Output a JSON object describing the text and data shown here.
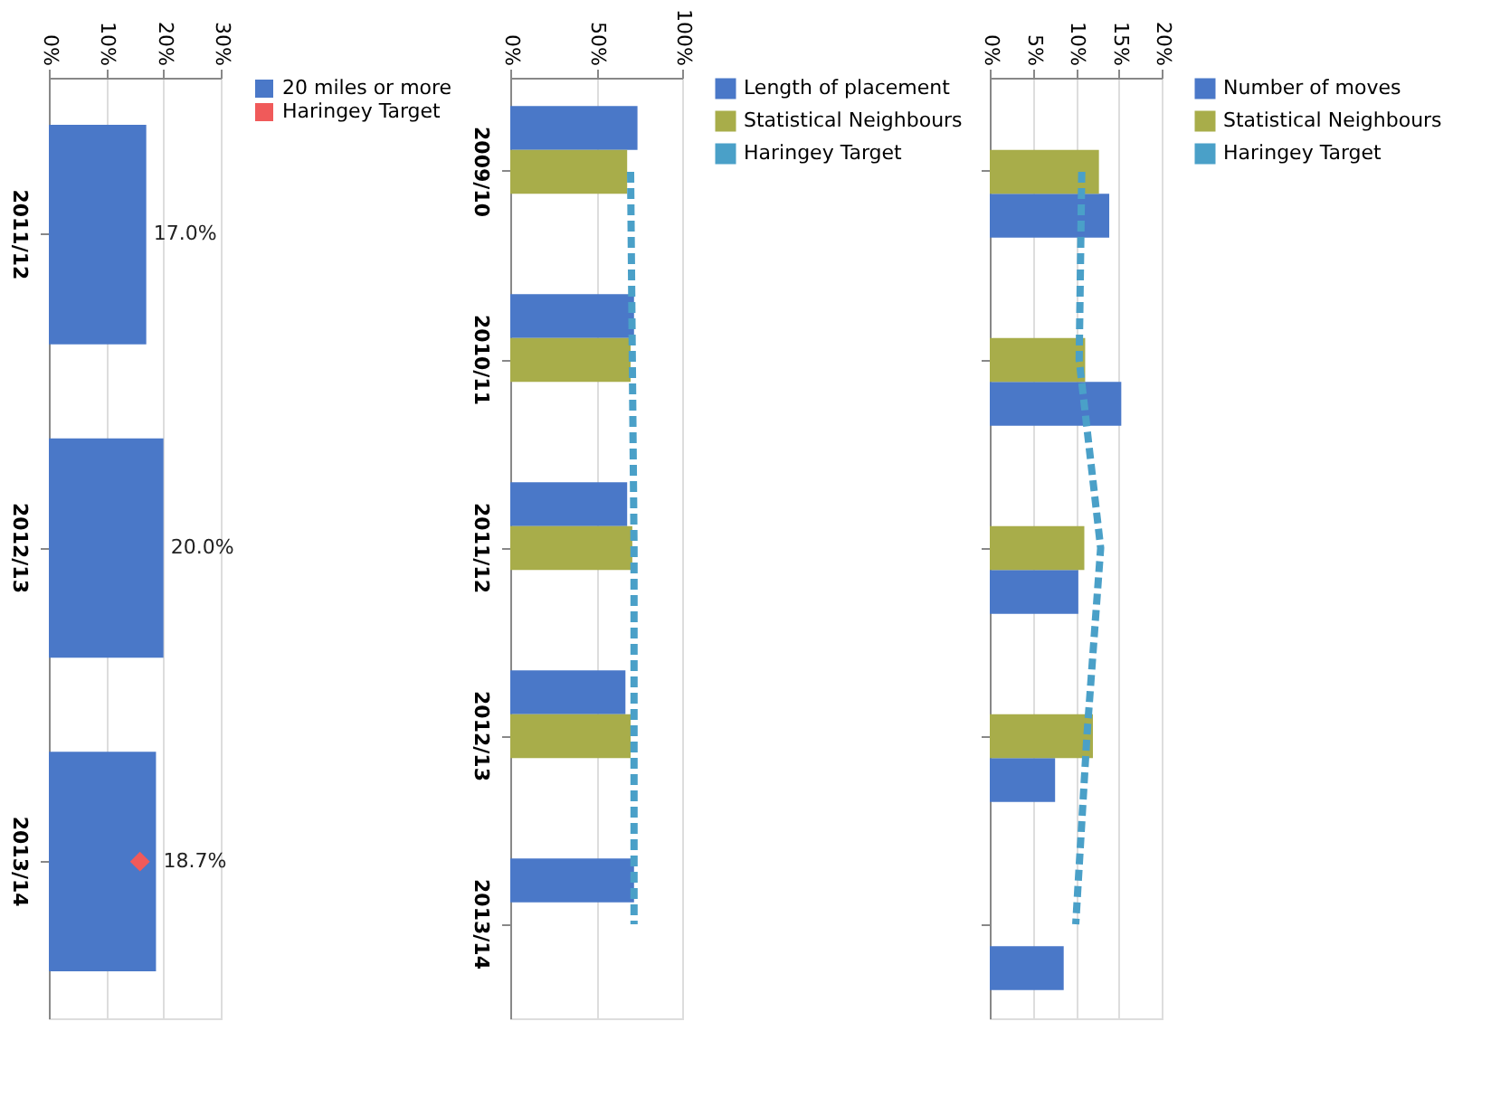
{
  "chart_data": [
    {
      "type": "bar",
      "orientation": "horizontal",
      "categories": [
        "2011/12",
        "2012/13",
        "2013/14"
      ],
      "xlim": [
        0,
        30
      ],
      "xticks": [
        {
          "value": 0,
          "label": "0%"
        },
        {
          "value": 10,
          "label": "10%"
        },
        {
          "value": 20,
          "label": "20%"
        },
        {
          "value": 30,
          "label": "30%"
        }
      ],
      "grid": "x",
      "legend": "right",
      "series": [
        {
          "name": "20 miles or more",
          "color": "#4a78c8",
          "values": [
            17.0,
            20.0,
            18.7
          ],
          "value_labels": [
            "17.0%",
            "20.0%",
            "18.7%"
          ]
        },
        {
          "name": "Haringey Target",
          "type": "scatter",
          "marker": "diamond",
          "color": "#f05a5a",
          "values": [
            null,
            null,
            15.9
          ]
        }
      ]
    },
    {
      "type": "bar",
      "orientation": "horizontal",
      "categories": [
        "2009/10",
        "2010/11",
        "2011/12",
        "2012/13",
        "2013/14"
      ],
      "xlim": [
        0,
        100
      ],
      "xticks": [
        {
          "value": 0,
          "label": "0%"
        },
        {
          "value": 50,
          "label": "50%"
        },
        {
          "value": 100,
          "label": "100%"
        }
      ],
      "grid": "x",
      "legend": "right",
      "series": [
        {
          "name": "Length of placement",
          "color": "#4a78c8",
          "values": [
            74,
            72,
            68,
            67,
            72
          ]
        },
        {
          "name": "Statistical Neighbours",
          "color": "#a8ad4a",
          "values": [
            68,
            70,
            71,
            70,
            null
          ]
        },
        {
          "name": "Haringey Target",
          "type": "line",
          "line_style": "dashed",
          "color": "#4aa0c8",
          "values": [
            70,
            71,
            72,
            72,
            72
          ]
        }
      ]
    },
    {
      "type": "bar",
      "orientation": "horizontal",
      "categories": [
        null,
        null,
        null,
        null,
        null
      ],
      "tick_labels": "x",
      "xlim": [
        0,
        20
      ],
      "xticks": [
        {
          "value": 0,
          "label": "0%"
        },
        {
          "value": 5,
          "label": "5%"
        },
        {
          "value": 10,
          "label": "10%"
        },
        {
          "value": 15,
          "label": "15%"
        },
        {
          "value": 20,
          "label": "20%"
        }
      ],
      "grid": "x",
      "legend": "right",
      "series": [
        {
          "name": "Number of moves",
          "color": "#4a78c8",
          "values": [
            13.9,
            15.3,
            10.3,
            7.6,
            8.6
          ]
        },
        {
          "name": "Statistical Neighbours",
          "color": "#a8ad4a",
          "values": [
            12.7,
            11.1,
            11.0,
            12.0,
            null
          ]
        },
        {
          "name": "Haringey Target",
          "type": "line",
          "line_style": "dashed",
          "color": "#4aa0c8",
          "values": [
            10.7,
            10.4,
            12.9,
            11.3,
            10.0
          ]
        }
      ]
    }
  ]
}
